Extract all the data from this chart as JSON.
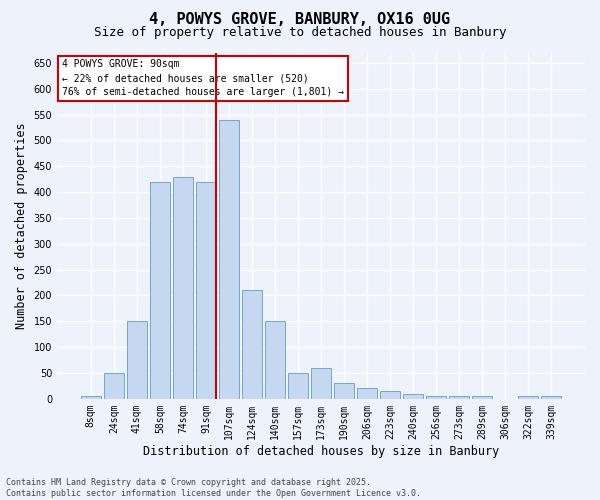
{
  "title1": "4, POWYS GROVE, BANBURY, OX16 0UG",
  "title2": "Size of property relative to detached houses in Banbury",
  "xlabel": "Distribution of detached houses by size in Banbury",
  "ylabel": "Number of detached properties",
  "categories": [
    "8sqm",
    "24sqm",
    "41sqm",
    "58sqm",
    "74sqm",
    "91sqm",
    "107sqm",
    "124sqm",
    "140sqm",
    "157sqm",
    "173sqm",
    "190sqm",
    "206sqm",
    "223sqm",
    "240sqm",
    "256sqm",
    "273sqm",
    "289sqm",
    "306sqm",
    "322sqm",
    "339sqm"
  ],
  "values": [
    5,
    50,
    150,
    420,
    430,
    420,
    540,
    210,
    150,
    50,
    60,
    30,
    20,
    15,
    10,
    5,
    5,
    5,
    0,
    5,
    5
  ],
  "bar_color": "#c5d8f0",
  "bar_edge_color": "#6fa8d4",
  "vline_color": "#cc0000",
  "vline_x": 5.42,
  "annotation_text": "4 POWYS GROVE: 90sqm\n← 22% of detached houses are smaller (520)\n76% of semi-detached houses are larger (1,801) →",
  "annotation_box_facecolor": "#ffffff",
  "annotation_box_edgecolor": "#cc0000",
  "ylim": [
    0,
    670
  ],
  "yticks": [
    0,
    50,
    100,
    150,
    200,
    250,
    300,
    350,
    400,
    450,
    500,
    550,
    600,
    650
  ],
  "background_color": "#eef2fa",
  "grid_color": "#ffffff",
  "footnote": "Contains HM Land Registry data © Crown copyright and database right 2025.\nContains public sector information licensed under the Open Government Licence v3.0.",
  "title_fontsize": 11,
  "subtitle_fontsize": 9,
  "axis_label_fontsize": 8.5,
  "tick_fontsize": 7,
  "annotation_fontsize": 7,
  "footnote_fontsize": 6
}
